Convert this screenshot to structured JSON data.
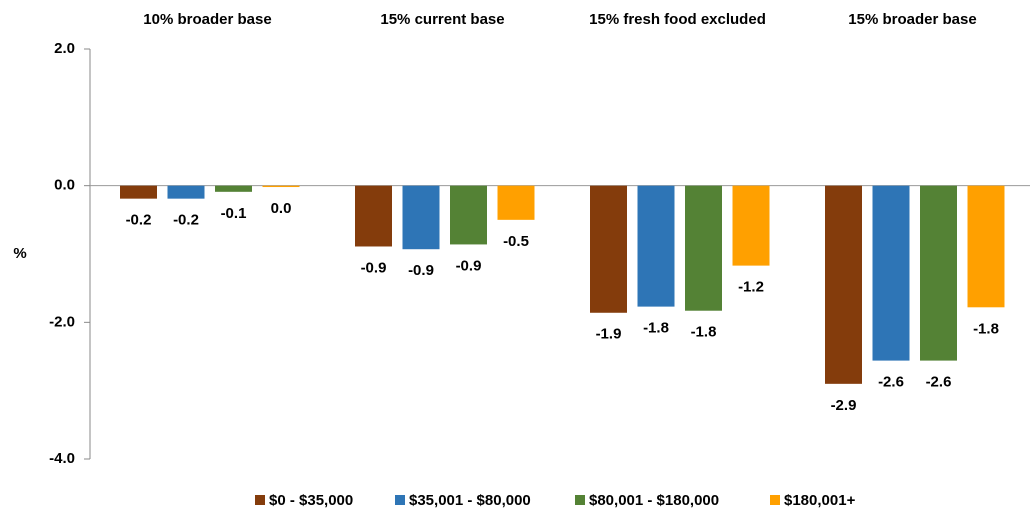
{
  "chart_data": {
    "type": "bar",
    "categories": [
      "10% broader base",
      "15% current base",
      "15% fresh food excluded",
      "15% broader base"
    ],
    "y_label": "%",
    "series": [
      {
        "name": "$0 - $35,000",
        "color": "#843c0c",
        "values": [
          -0.19,
          -0.89,
          -1.86,
          -2.9
        ],
        "value_labels": [
          "-0.2",
          "-0.9",
          "-1.9",
          "-2.9"
        ]
      },
      {
        "name": "$35,001 - $80,000",
        "color": "#2e75b6",
        "values": [
          -0.19,
          -0.93,
          -1.77,
          -2.56
        ],
        "value_labels": [
          "-0.2",
          "-0.9",
          "-1.8",
          "-2.6"
        ]
      },
      {
        "name": "$80,001 - $180,000",
        "color": "#548235",
        "values": [
          -0.09,
          -0.86,
          -1.83,
          -2.56
        ],
        "value_labels": [
          "-0.1",
          "-0.9",
          "-1.8",
          "-2.6"
        ]
      },
      {
        "name": "$180,001+",
        "color": "#ffa000",
        "values": [
          -0.02,
          -0.5,
          -1.17,
          -1.78
        ],
        "value_labels": [
          "0.0",
          "-0.5",
          "-1.2",
          "-1.8"
        ]
      }
    ],
    "ylim": [
      -4,
      2
    ],
    "yticks": [
      {
        "value": -4,
        "label": "-4.0"
      },
      {
        "value": -2,
        "label": "-2.0"
      },
      {
        "value": 0,
        "label": "0.0"
      },
      {
        "value": 2,
        "label": "2.0"
      }
    ]
  }
}
